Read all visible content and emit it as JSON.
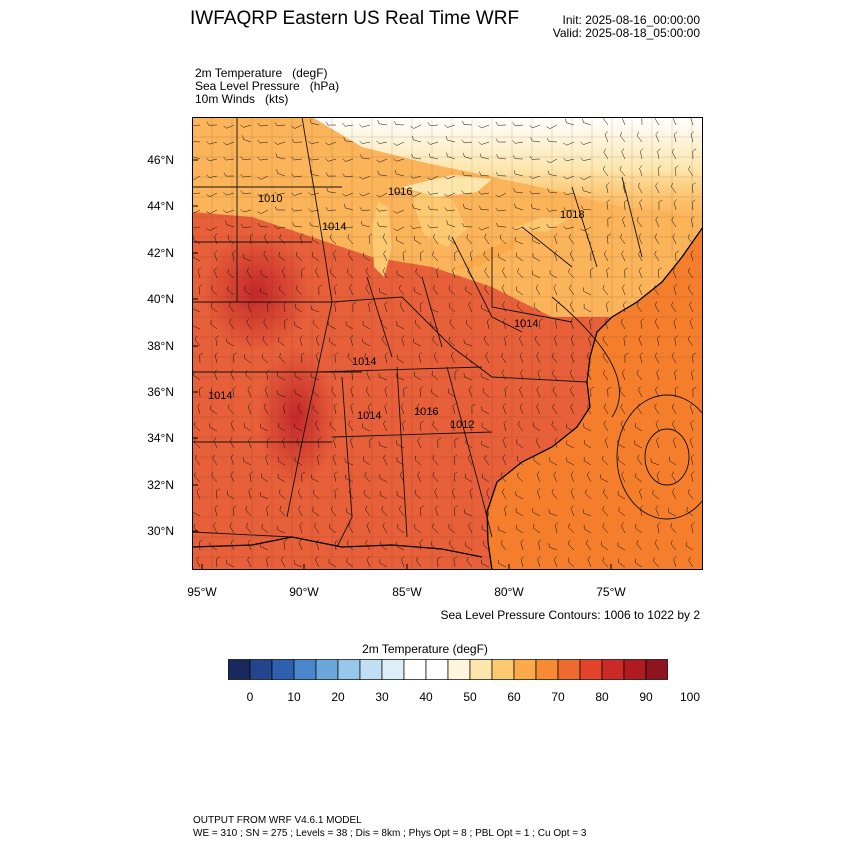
{
  "header": {
    "title": "IWFAQRP Eastern US Real Time WRF",
    "init": "Init: 2025-08-16_00:00:00",
    "valid": "Valid: 2025-08-18_05:00:00"
  },
  "fields": [
    {
      "name": "2m Temperature",
      "unit": "(degF)"
    },
    {
      "name": "Sea Level Pressure",
      "unit": "(hPa)"
    },
    {
      "name": "10m Winds",
      "unit": "(kts)"
    }
  ],
  "map": {
    "lat_labels": [
      "46°N",
      "44°N",
      "42°N",
      "40°N",
      "38°N",
      "36°N",
      "34°N",
      "32°N",
      "30°N"
    ],
    "lon_labels": [
      "95°W",
      "90°W",
      "85°W",
      "80°W",
      "75°W"
    ],
    "pressure_labels": [
      "1010",
      "1014",
      "1016",
      "1018",
      "1014",
      "1014",
      "1014",
      "1016",
      "1012",
      "1014"
    ],
    "contour_note": "Sea Level Pressure Contours: 1006 to 1022 by 2",
    "land_color": "#e8603a",
    "ocean_color": "#f57e2c"
  },
  "colorbar": {
    "title": "2m Temperature  (degF)",
    "colors": [
      "#1b2a5e",
      "#24448c",
      "#2e60b0",
      "#4a86cc",
      "#6aa7dd",
      "#97c8ec",
      "#c0def4",
      "#deeef9",
      "#ffffff",
      "#ffffff",
      "#fff4dc",
      "#fde6ac",
      "#fcc870",
      "#fbaa4a",
      "#f78a32",
      "#ef6a2e",
      "#e2432a",
      "#cc2a26",
      "#ae1c22",
      "#8e1420"
    ],
    "labels": [
      "0",
      "10",
      "20",
      "30",
      "40",
      "50",
      "60",
      "70",
      "80",
      "90",
      "100"
    ]
  },
  "footer": {
    "line1": "OUTPUT FROM WRF V4.6.1 MODEL",
    "line2": "WE = 310 ; SN = 275 ; Levels = 38 ; Dis = 8km ; Phys Opt = 8 ; PBL Opt = 1 ; Cu Opt = 3"
  }
}
